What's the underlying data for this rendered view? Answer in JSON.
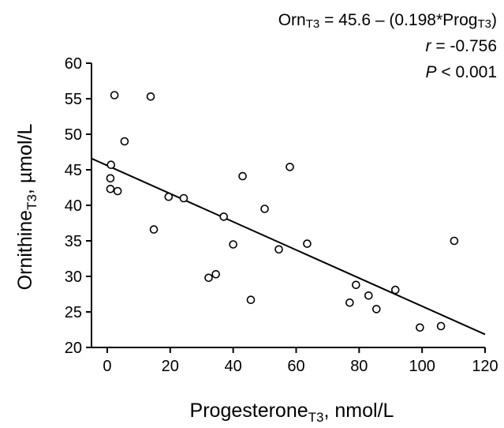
{
  "chart_data": {
    "type": "scatter",
    "x_axis": {
      "label_main": "Progesterone",
      "label_sub": "T3",
      "label_unit": ", nmol/L",
      "range": [
        -5,
        120
      ],
      "ticks": [
        0,
        20,
        40,
        60,
        80,
        100,
        120
      ]
    },
    "y_axis": {
      "label_main": "Ornithine",
      "label_sub": "T3",
      "label_unit": ", µmol/L",
      "range": [
        20,
        60
      ],
      "ticks": [
        20,
        25,
        30,
        35,
        40,
        45,
        50,
        55,
        60
      ]
    },
    "grid": false,
    "annotation": {
      "equation": {
        "lhs": "Orn",
        "lhs_sub": "T3",
        "mid": " = 45.6 – (0.198*Prog",
        "rhs_sub": "T3",
        "close": ")"
      },
      "r_symbol": "r",
      "r_value": " = -0.756",
      "p_symbol": "P",
      "p_value": " < 0.001"
    },
    "regression": {
      "intercept": 45.6,
      "slope": -0.198,
      "x_range": [
        -5,
        120
      ]
    },
    "points": [
      {
        "x": 1,
        "y": 43.8
      },
      {
        "x": 1,
        "y": 42.3
      },
      {
        "x": 1.2,
        "y": 45.7
      },
      {
        "x": 2.3,
        "y": 55.5
      },
      {
        "x": 3.3,
        "y": 42.0
      },
      {
        "x": 5.5,
        "y": 49.0
      },
      {
        "x": 13.8,
        "y": 55.3
      },
      {
        "x": 14.8,
        "y": 36.6
      },
      {
        "x": 19.5,
        "y": 41.2
      },
      {
        "x": 24.3,
        "y": 41.0
      },
      {
        "x": 32.2,
        "y": 29.8
      },
      {
        "x": 34.5,
        "y": 30.3
      },
      {
        "x": 37,
        "y": 38.4
      },
      {
        "x": 40,
        "y": 34.5
      },
      {
        "x": 43,
        "y": 44.1
      },
      {
        "x": 45.6,
        "y": 26.7
      },
      {
        "x": 50,
        "y": 39.5
      },
      {
        "x": 54.5,
        "y": 33.8
      },
      {
        "x": 58,
        "y": 45.4
      },
      {
        "x": 63.5,
        "y": 34.6
      },
      {
        "x": 77,
        "y": 26.3
      },
      {
        "x": 79,
        "y": 28.8
      },
      {
        "x": 83,
        "y": 27.3
      },
      {
        "x": 85.5,
        "y": 25.4
      },
      {
        "x": 91.5,
        "y": 28.1
      },
      {
        "x": 99.3,
        "y": 22.8
      },
      {
        "x": 106,
        "y": 23.0
      },
      {
        "x": 110.2,
        "y": 35.0
      }
    ]
  }
}
